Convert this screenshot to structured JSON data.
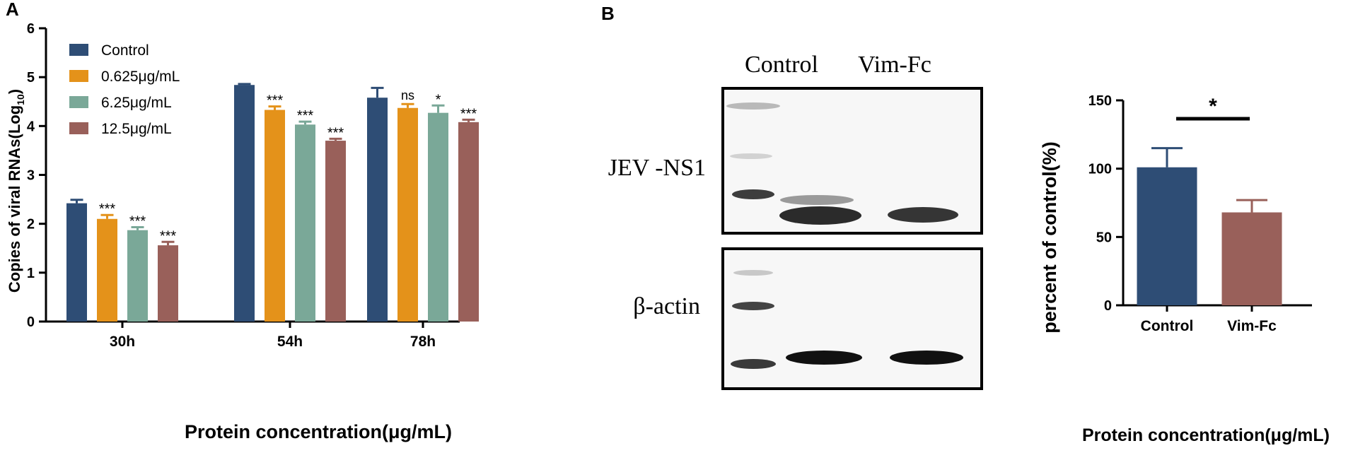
{
  "panels": {
    "a_label": "A",
    "b_label": "B"
  },
  "colors": {
    "control": "#2e4d75",
    "c0625": "#e4921a",
    "c625": "#7aa898",
    "c125": "#99605a",
    "axis": "#000000"
  },
  "blot": {
    "lane_labels": [
      "Control",
      "Vim-Fc"
    ],
    "row_labels": [
      "JEV -NS1",
      "β-actin"
    ]
  },
  "chart_data": [
    {
      "type": "bar",
      "categories": [
        "30h",
        "54h",
        "78h"
      ],
      "series": [
        {
          "name": "Control",
          "values": [
            2.42,
            4.84,
            4.58
          ],
          "errors": [
            0.07,
            0.02,
            0.2
          ],
          "sig": [
            "",
            "",
            ""
          ]
        },
        {
          "name": "0.625μg/mL",
          "values": [
            2.1,
            4.33,
            4.37
          ],
          "errors": [
            0.08,
            0.07,
            0.08
          ],
          "sig": [
            "***",
            "***",
            "ns"
          ]
        },
        {
          "name": "6.25μg/mL",
          "values": [
            1.87,
            4.03,
            4.27
          ],
          "errors": [
            0.06,
            0.06,
            0.15
          ],
          "sig": [
            "***",
            "***",
            "*"
          ]
        },
        {
          "name": "12.5μg/mL",
          "values": [
            1.56,
            3.7,
            4.08
          ],
          "errors": [
            0.07,
            0.04,
            0.05
          ],
          "sig": [
            "***",
            "***",
            "***"
          ]
        }
      ],
      "ylabel": "Copies of viral  RNAs(Log10)",
      "ylabel_main": "Copies of viral  RNAs(Log",
      "ylabel_sub": "10",
      "ylabel_end": ")",
      "xlabel": "Protein concentration(μg/mL)",
      "yticks": [
        "0",
        "1",
        "2",
        "3",
        "4",
        "5",
        "6"
      ],
      "ylim": [
        0,
        6
      ],
      "legend": "top-left"
    },
    {
      "type": "bar",
      "categories": [
        "Control",
        "Vim-Fc"
      ],
      "values": [
        101,
        68
      ],
      "errors": [
        14,
        9
      ],
      "significance": "*",
      "ylabel": "percent of control(%)",
      "xlabel": "Protein concentration(μg/mL)",
      "yticks": [
        "0",
        "50",
        "100",
        "150"
      ],
      "ylim": [
        0,
        150
      ]
    }
  ]
}
